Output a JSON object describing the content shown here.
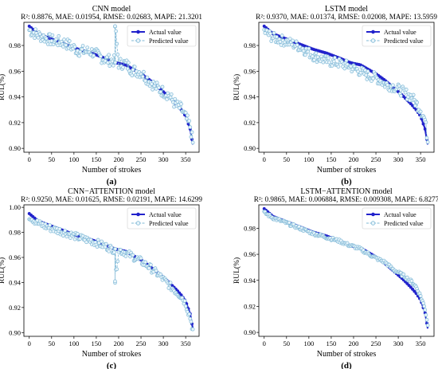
{
  "figure": {
    "legend": {
      "actual": "Actual value",
      "predicted": "Predicted value"
    },
    "colors": {
      "actual": "#2222cc",
      "predicted": "#7fb8d6",
      "predicted_face": "#e9f5fb"
    }
  },
  "chart_data": [
    {
      "type": "line",
      "panel_label": "(a)",
      "title": "CNN model",
      "subtitle": "R²: 0.8876, MAE: 0.01954, RMSE: 0.02683, MAPE: 21.3201",
      "xlabel": "Number of strokes",
      "ylabel": "RUL(%)",
      "xlim": [
        -12,
        380
      ],
      "ylim": [
        0.897,
        0.998
      ],
      "xticks": [
        0,
        50,
        100,
        150,
        200,
        250,
        300,
        350
      ],
      "yticks": [
        0.9,
        0.92,
        0.94,
        0.96,
        0.98
      ],
      "legend_position": "top-right",
      "grid": false,
      "series": [
        {
          "name": "Actual value",
          "x": [
            0,
            20,
            50,
            80,
            110,
            140,
            170,
            190,
            200,
            215,
            230,
            250,
            270,
            290,
            310,
            330,
            340,
            350,
            360,
            366
          ],
          "values": [
            0.995,
            0.989,
            0.985,
            0.981,
            0.977,
            0.974,
            0.97,
            0.967,
            0.966,
            0.965,
            0.962,
            0.958,
            0.953,
            0.947,
            0.941,
            0.934,
            0.93,
            0.925,
            0.915,
            0.903
          ]
        },
        {
          "name": "Predicted value",
          "x": [
            0,
            20,
            50,
            80,
            110,
            140,
            170,
            190,
            192,
            200,
            215,
            230,
            250,
            270,
            290,
            310,
            330,
            340,
            350,
            360,
            366
          ],
          "values": [
            0.992,
            0.988,
            0.984,
            0.982,
            0.976,
            0.975,
            0.969,
            0.968,
            0.995,
            0.966,
            0.966,
            0.961,
            0.959,
            0.952,
            0.946,
            0.942,
            0.933,
            0.931,
            0.924,
            0.917,
            0.904
          ]
        }
      ]
    },
    {
      "type": "line",
      "panel_label": "(b)",
      "title": "LSTM model",
      "subtitle": "R²: 0.9370, MAE: 0.01374, RMSE: 0.02008, MAPE: 13.5959",
      "xlabel": "Number of strokes",
      "ylabel": "RUL(%)",
      "xlim": [
        -12,
        380
      ],
      "ylim": [
        0.897,
        0.998
      ],
      "xticks": [
        0,
        50,
        100,
        150,
        200,
        250,
        300,
        350
      ],
      "yticks": [
        0.9,
        0.92,
        0.94,
        0.96,
        0.98
      ],
      "legend_position": "top-right",
      "grid": false,
      "series": [
        {
          "name": "Actual value",
          "x": [
            0,
            20,
            50,
            80,
            110,
            140,
            170,
            190,
            200,
            215,
            230,
            250,
            270,
            290,
            310,
            330,
            340,
            350,
            360,
            366
          ],
          "values": [
            0.995,
            0.989,
            0.985,
            0.981,
            0.977,
            0.974,
            0.97,
            0.967,
            0.966,
            0.965,
            0.962,
            0.958,
            0.953,
            0.947,
            0.941,
            0.934,
            0.93,
            0.925,
            0.915,
            0.903
          ]
        },
        {
          "name": "Predicted value",
          "x": [
            0,
            20,
            50,
            80,
            110,
            140,
            170,
            190,
            200,
            215,
            230,
            250,
            270,
            290,
            310,
            330,
            340,
            350,
            360,
            366
          ],
          "values": [
            0.991,
            0.986,
            0.983,
            0.979,
            0.972,
            0.968,
            0.966,
            0.964,
            0.962,
            0.96,
            0.957,
            0.955,
            0.95,
            0.948,
            0.944,
            0.94,
            0.935,
            0.93,
            0.922,
            0.906
          ]
        }
      ]
    },
    {
      "type": "line",
      "panel_label": "(c)",
      "title": "CNN−ATTENTION model",
      "subtitle": "R²: 0.9250, MAE: 0.01625, RMSE: 0.02191, MAPE: 14.6299",
      "xlabel": "Number of strokes",
      "ylabel": "RUL(%)",
      "xlim": [
        -12,
        380
      ],
      "ylim": [
        0.897,
        1.002
      ],
      "xticks": [
        0,
        50,
        100,
        150,
        200,
        250,
        300,
        350
      ],
      "yticks": [
        0.9,
        0.92,
        0.94,
        0.96,
        0.98,
        1.0
      ],
      "legend_position": "top-right",
      "grid": false,
      "series": [
        {
          "name": "Actual value",
          "x": [
            0,
            20,
            50,
            80,
            110,
            140,
            170,
            190,
            200,
            215,
            230,
            250,
            270,
            290,
            310,
            330,
            340,
            350,
            360,
            366
          ],
          "values": [
            0.995,
            0.989,
            0.985,
            0.981,
            0.977,
            0.974,
            0.97,
            0.967,
            0.966,
            0.965,
            0.962,
            0.958,
            0.953,
            0.947,
            0.941,
            0.934,
            0.93,
            0.925,
            0.915,
            0.903
          ]
        },
        {
          "name": "Predicted value",
          "x": [
            0,
            20,
            50,
            80,
            110,
            140,
            170,
            190,
            192,
            200,
            215,
            230,
            250,
            270,
            290,
            310,
            330,
            340,
            350,
            360,
            366
          ],
          "values": [
            0.993,
            0.987,
            0.983,
            0.98,
            0.976,
            0.973,
            0.969,
            0.966,
            0.941,
            0.966,
            0.964,
            0.961,
            0.957,
            0.952,
            0.946,
            0.939,
            0.932,
            0.929,
            0.923,
            0.912,
            0.902
          ]
        }
      ]
    },
    {
      "type": "line",
      "panel_label": "(d)",
      "title": "LSTM−ATTENTION model",
      "subtitle": "R²: 0.9865, MAE: 0.006884, RMSE: 0.009308, MAPE: 6.8277",
      "xlabel": "Number of strokes",
      "ylabel": "RUL(%)",
      "xlim": [
        -12,
        380
      ],
      "ylim": [
        0.897,
        0.998
      ],
      "xticks": [
        0,
        50,
        100,
        150,
        200,
        250,
        300,
        350
      ],
      "yticks": [
        0.9,
        0.92,
        0.94,
        0.96,
        0.98
      ],
      "legend_position": "top-right",
      "grid": false,
      "series": [
        {
          "name": "Actual value",
          "x": [
            0,
            20,
            50,
            80,
            110,
            140,
            170,
            190,
            200,
            215,
            230,
            250,
            270,
            290,
            310,
            330,
            340,
            350,
            360,
            366
          ],
          "values": [
            0.995,
            0.989,
            0.985,
            0.981,
            0.977,
            0.974,
            0.97,
            0.967,
            0.966,
            0.965,
            0.962,
            0.958,
            0.953,
            0.947,
            0.941,
            0.934,
            0.93,
            0.925,
            0.915,
            0.903
          ]
        },
        {
          "name": "Predicted value",
          "x": [
            0,
            20,
            50,
            80,
            110,
            140,
            170,
            190,
            200,
            215,
            230,
            250,
            270,
            290,
            310,
            330,
            340,
            350,
            360,
            366
          ],
          "values": [
            0.992,
            0.988,
            0.984,
            0.98,
            0.976,
            0.973,
            0.97,
            0.967,
            0.966,
            0.964,
            0.961,
            0.957,
            0.954,
            0.948,
            0.944,
            0.939,
            0.935,
            0.928,
            0.918,
            0.906
          ]
        }
      ]
    }
  ]
}
